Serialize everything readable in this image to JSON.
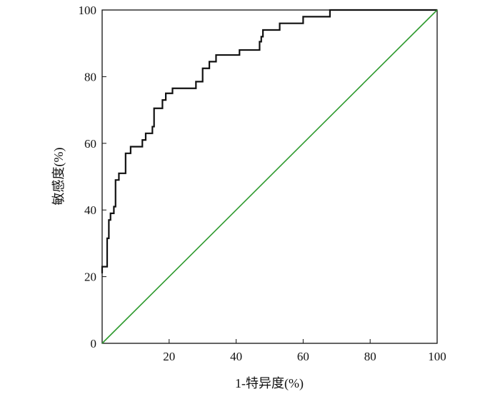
{
  "chart_data": {
    "type": "line",
    "title": "",
    "xlabel": "1-特异度(%)",
    "ylabel": "敏感度(%)",
    "xlim": [
      0,
      100
    ],
    "ylim": [
      0,
      100
    ],
    "xticks": [
      20,
      40,
      60,
      80,
      100
    ],
    "yticks": [
      0,
      20,
      40,
      60,
      80,
      100
    ],
    "grid": false,
    "legend": "none",
    "colors": {
      "roc": "#111111",
      "reference": "#2e9a2e",
      "axis": "#111111"
    },
    "series": [
      {
        "type": "step",
        "points": [
          [
            0,
            21
          ],
          [
            0,
            23
          ],
          [
            1.5,
            23
          ],
          [
            1.5,
            31.5
          ],
          [
            2,
            31.5
          ],
          [
            2,
            37
          ],
          [
            2.5,
            37
          ],
          [
            2.5,
            39
          ],
          [
            3.5,
            39
          ],
          [
            3.5,
            41
          ],
          [
            4,
            41
          ],
          [
            4,
            49
          ],
          [
            5,
            49
          ],
          [
            5,
            51
          ],
          [
            7,
            51
          ],
          [
            7,
            57
          ],
          [
            8.5,
            57
          ],
          [
            8.5,
            59
          ],
          [
            12,
            59
          ],
          [
            12,
            61
          ],
          [
            13,
            61
          ],
          [
            13,
            63
          ],
          [
            15,
            63
          ],
          [
            15,
            65
          ],
          [
            15.5,
            65
          ],
          [
            15.5,
            70.5
          ],
          [
            18,
            70.5
          ],
          [
            18,
            73
          ],
          [
            19,
            73
          ],
          [
            19,
            75
          ],
          [
            21,
            75
          ],
          [
            21,
            76.5
          ],
          [
            28,
            76.5
          ],
          [
            28,
            78.5
          ],
          [
            30,
            78.5
          ],
          [
            30,
            82.5
          ],
          [
            32,
            82.5
          ],
          [
            32,
            84.5
          ],
          [
            34,
            84.5
          ],
          [
            34,
            86.5
          ],
          [
            41,
            86.5
          ],
          [
            41,
            88
          ],
          [
            47,
            88
          ],
          [
            47,
            90.5
          ],
          [
            47.5,
            90.5
          ],
          [
            47.5,
            92
          ],
          [
            48,
            92
          ],
          [
            48,
            94
          ],
          [
            53,
            94
          ],
          [
            53,
            96
          ],
          [
            60,
            96
          ],
          [
            60,
            98
          ],
          [
            68,
            98
          ],
          [
            68,
            100
          ],
          [
            100,
            100
          ]
        ]
      },
      {
        "type": "line",
        "points": [
          [
            0,
            0
          ],
          [
            100,
            100
          ]
        ]
      }
    ]
  }
}
